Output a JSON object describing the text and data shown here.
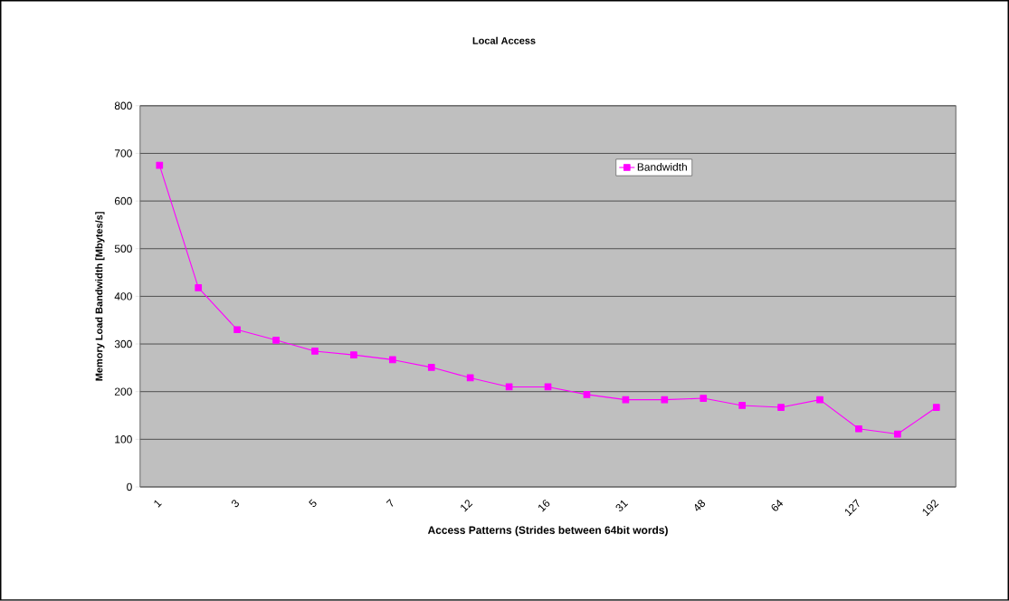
{
  "chart_data": {
    "type": "line",
    "title": "Local Access",
    "xlabel": "Access Patterns (Strides between 64bit words)",
    "ylabel": "Memory Load Bandwidth [Mbytes/s]",
    "categories": [
      "1",
      null,
      "3",
      null,
      "5",
      null,
      "7",
      null,
      "12",
      null,
      "16",
      null,
      "31",
      null,
      "48",
      null,
      "64",
      null,
      "127",
      null,
      "192"
    ],
    "series": [
      {
        "name": "Bandwidth",
        "color": "#ff00ff",
        "values": [
          675,
          418,
          330,
          308,
          285,
          277,
          267,
          251,
          229,
          210,
          210,
          194,
          183,
          183,
          186,
          171,
          167,
          183,
          122,
          111,
          167
        ]
      }
    ],
    "ylim": [
      0,
      800
    ],
    "yticks": [
      0,
      100,
      200,
      300,
      400,
      500,
      600,
      700,
      800
    ],
    "grid": "y",
    "legend": "top",
    "marker": "square",
    "line_style": "solid"
  }
}
